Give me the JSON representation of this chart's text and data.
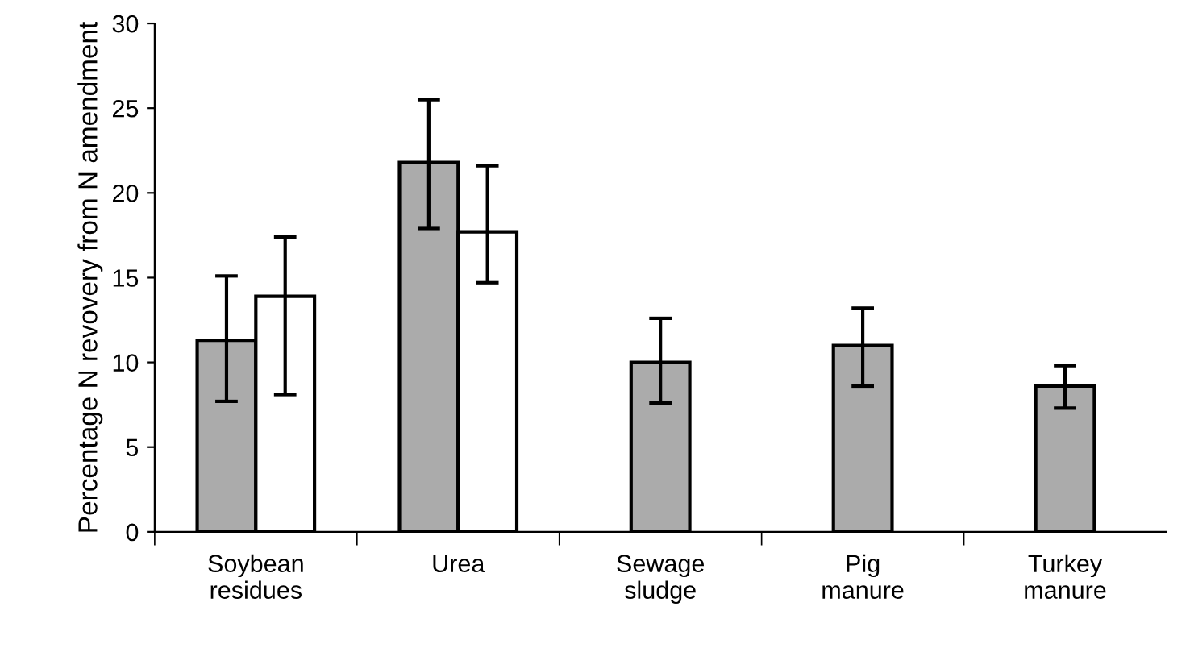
{
  "chart_data": {
    "type": "bar",
    "ylabel": "Percentage N revovery from N amendment",
    "categories": [
      "Soybean\nresidues",
      "Urea",
      "Sewage\nsludge",
      "Pig\nmanure",
      "Turkey\nmanure"
    ],
    "series": [
      {
        "color": "#ababab",
        "values": [
          11.3,
          21.8,
          10.0,
          11.0,
          8.6
        ],
        "errors": [
          [
            7.7,
            15.1
          ],
          [
            17.9,
            25.5
          ],
          [
            7.6,
            12.6
          ],
          [
            8.6,
            13.2
          ],
          [
            7.3,
            9.8
          ]
        ]
      },
      {
        "color": "#ffffff",
        "values": [
          13.9,
          17.7,
          null,
          null,
          null
        ],
        "errors": [
          [
            8.1,
            17.4
          ],
          [
            14.7,
            21.6
          ],
          null,
          null,
          null
        ]
      }
    ],
    "ylim": [
      0,
      30
    ],
    "yticks": [
      0,
      5,
      10,
      15,
      20,
      25,
      30
    ],
    "grid": false,
    "legend": false
  }
}
